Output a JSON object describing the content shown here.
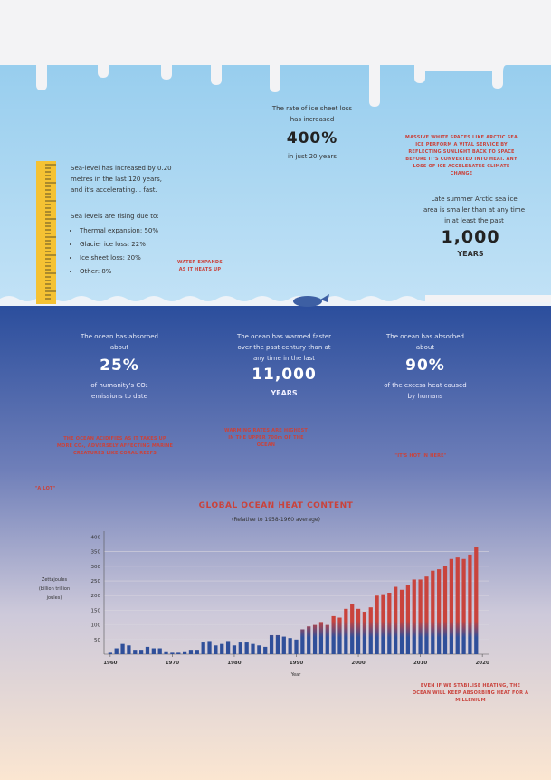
{
  "ice": {
    "text": "The rate of ice sheet loss has increased",
    "stat": "400%",
    "sub": "in just 20 years"
  },
  "arctic": {
    "note": "MASSIVE WHITE SPACES LIKE ARCTIC SEA ICE PERFORM A VITAL SERVICE BY REFLECTING SUNLIGHT BACK TO SPACE BEFORE IT'S CONVERTED INTO HEAT. ANY LOSS OF ICE ACCELERATES CLIMATE CHANGE",
    "text": "Late summer Arctic sea ice area is smaller than at any time in at least the past",
    "stat": "1,000",
    "unit": "YEARS"
  },
  "sea_level": {
    "text": "Sea-level has increased by 0.20 metres in the last 120 years, and it's accelerating… fast.",
    "causes_title": "Sea levels are rising due to:",
    "causes": [
      "Thermal expansion: 50%",
      "Glacier ice loss: 22%",
      "Ice sheet loss: 20%",
      "Other: 8%"
    ],
    "note": "WATER EXPANDS AS IT HEATS UP"
  },
  "ocean": [
    {
      "pre": "The ocean has absorbed about",
      "stat": "25%",
      "post": "of humanity's CO₂ emissions to date",
      "note": "THE OCEAN ACIDIFIES AS IT TAKES UP MORE CO₂, ADVERSELY AFFECTING MARINE CREATURES LIKE CORAL REEFS"
    },
    {
      "pre": "The ocean has warmed faster over the past century than at any time in the last",
      "stat": "11,000",
      "post": "YEARS",
      "note": "WARMING RATES ARE HIGHEST IN THE UPPER 700m OF THE OCEAN"
    },
    {
      "pre": "The ocean has absorbed about",
      "stat": "90%",
      "post": "of the excess heat caused by humans",
      "note": "\"IT'S HOT IN HERE\""
    }
  ],
  "notes": {
    "a_lot": "\"A LOT\"",
    "millenium": "EVEN IF WE STABILISE HEATING, THE OCEAN WILL KEEP ABSORBING HEAT FOR A MILLENIUM"
  },
  "chart_data": {
    "type": "bar",
    "title": "GLOBAL OCEAN HEAT CONTENT",
    "subtitle": "(Relative to 1958-1960 average)",
    "y_label": "Zettajoules (billion trillion joules)",
    "x_label": "Year",
    "x": [
      1960,
      1961,
      1962,
      1963,
      1964,
      1965,
      1966,
      1967,
      1968,
      1969,
      1970,
      1971,
      1972,
      1973,
      1974,
      1975,
      1976,
      1977,
      1978,
      1979,
      1980,
      1981,
      1982,
      1983,
      1984,
      1985,
      1986,
      1987,
      1988,
      1989,
      1990,
      1991,
      1992,
      1993,
      1994,
      1995,
      1996,
      1997,
      1998,
      1999,
      2000,
      2001,
      2002,
      2003,
      2004,
      2005,
      2006,
      2007,
      2008,
      2009,
      2010,
      2011,
      2012,
      2013,
      2014,
      2015,
      2016,
      2017,
      2018,
      2019
    ],
    "values": [
      5,
      20,
      35,
      30,
      15,
      15,
      25,
      20,
      20,
      10,
      5,
      5,
      10,
      15,
      15,
      40,
      45,
      30,
      35,
      45,
      30,
      40,
      40,
      35,
      30,
      25,
      65,
      65,
      60,
      55,
      50,
      85,
      95,
      100,
      110,
      100,
      130,
      125,
      155,
      170,
      155,
      145,
      160,
      200,
      205,
      210,
      230,
      220,
      235,
      255,
      255,
      265,
      285,
      290,
      300,
      325,
      330,
      325,
      340,
      365
    ],
    "colors": [
      "#2f4f9a",
      "#c9433c"
    ],
    "xlim": [
      1959,
      2021
    ],
    "xticks": [
      1960,
      1970,
      1980,
      1990,
      2000,
      2010,
      2020
    ],
    "ylim": [
      0,
      420
    ],
    "yticks": [
      50,
      100,
      150,
      200,
      250,
      300,
      350,
      400
    ],
    "grid": true
  }
}
